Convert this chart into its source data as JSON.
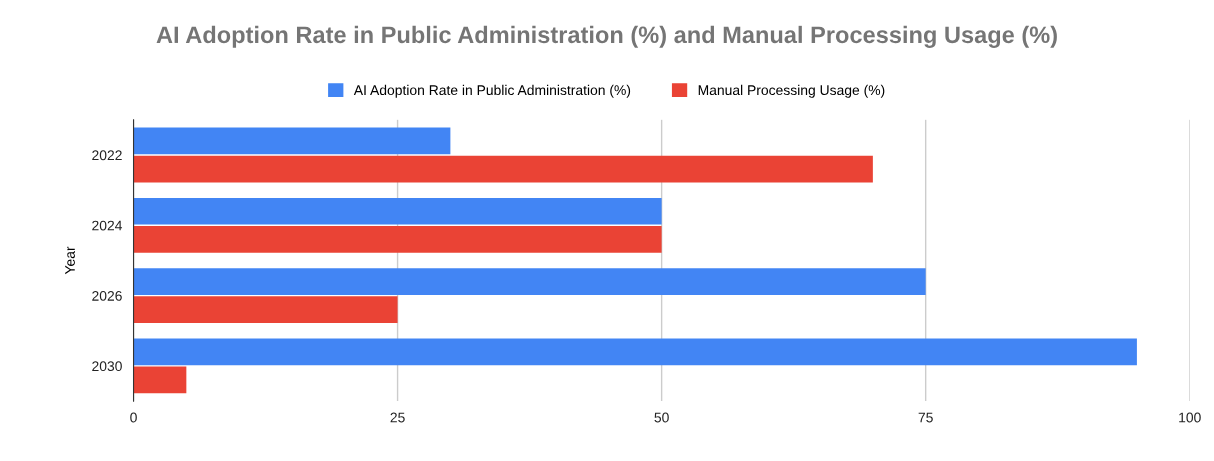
{
  "chart_data": {
    "type": "bar",
    "orientation": "horizontal",
    "title": "AI Adoption Rate in Public Administration (%) and Manual Processing Usage (%)",
    "ylabel": "Year",
    "categories": [
      "2022",
      "2024",
      "2026",
      "2030"
    ],
    "series": [
      {
        "name": "AI Adoption Rate in Public Administration (%)",
        "color": "#4285f4",
        "values": [
          30,
          50,
          75,
          95
        ]
      },
      {
        "name": "Manual Processing Usage (%)",
        "color": "#ea4335",
        "values": [
          70,
          50,
          25,
          5
        ]
      }
    ],
    "xlim": [
      0,
      100
    ],
    "xticks": [
      0,
      25,
      50,
      75,
      100
    ],
    "grid": "x",
    "legend": "top"
  }
}
